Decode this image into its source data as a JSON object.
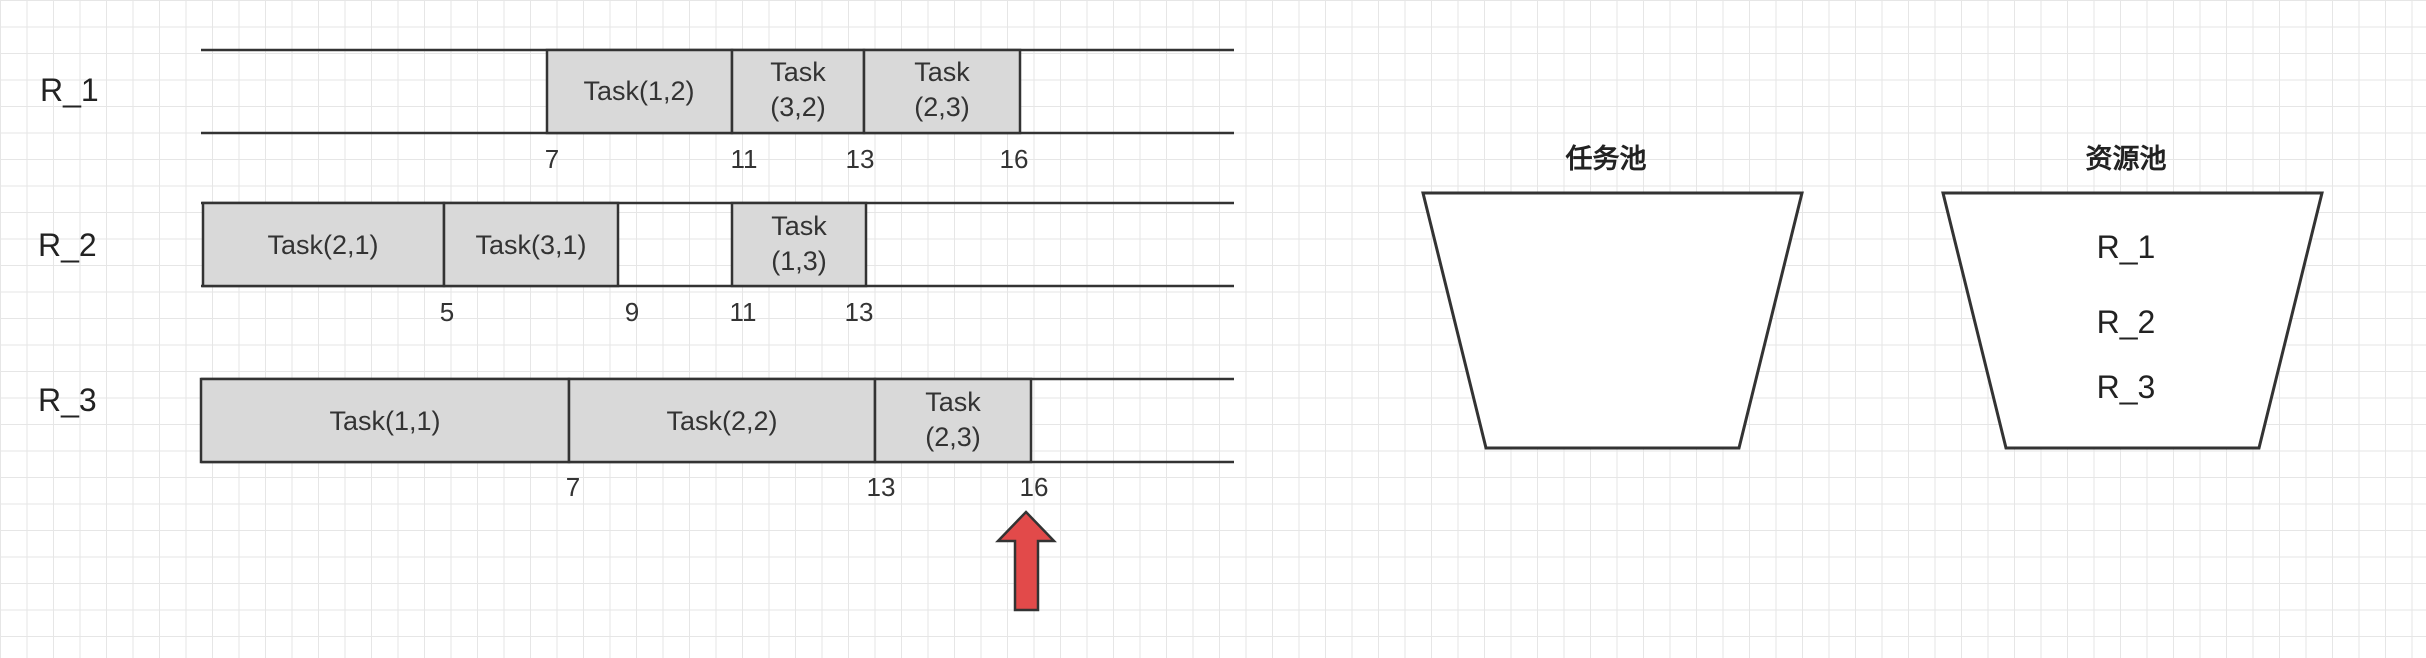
{
  "lanes": [
    {
      "label": "R_1",
      "tasks": [
        {
          "lines": [
            "Task(1,2)"
          ]
        },
        {
          "lines": [
            "Task",
            "(3,2)"
          ]
        },
        {
          "lines": [
            "Task",
            "(2,3)"
          ]
        }
      ],
      "ticks": [
        "7",
        "11",
        "13",
        "16"
      ]
    },
    {
      "label": "R_2",
      "tasks": [
        {
          "lines": [
            "Task(2,1)"
          ]
        },
        {
          "lines": [
            "Task(3,1)"
          ]
        },
        {
          "lines": [
            "Task",
            "(1,3)"
          ]
        }
      ],
      "ticks": [
        "5",
        "9",
        "11",
        "13"
      ]
    },
    {
      "label": "R_3",
      "tasks": [
        {
          "lines": [
            "Task(1,1)"
          ]
        },
        {
          "lines": [
            "Task(2,2)"
          ]
        },
        {
          "lines": [
            "Task",
            "(2,3)"
          ]
        }
      ],
      "ticks": [
        "7",
        "13",
        "16"
      ]
    }
  ],
  "task_pool": {
    "title": "任务池",
    "items": []
  },
  "resource_pool": {
    "title": "资源池",
    "items": [
      "R_1",
      "R_2",
      "R_3"
    ]
  },
  "colors": {
    "task_fill": "#d9d9d9",
    "outline": "#333333",
    "arrow": "#e24a4a"
  },
  "marker": {
    "icon": "up-arrow-icon"
  }
}
